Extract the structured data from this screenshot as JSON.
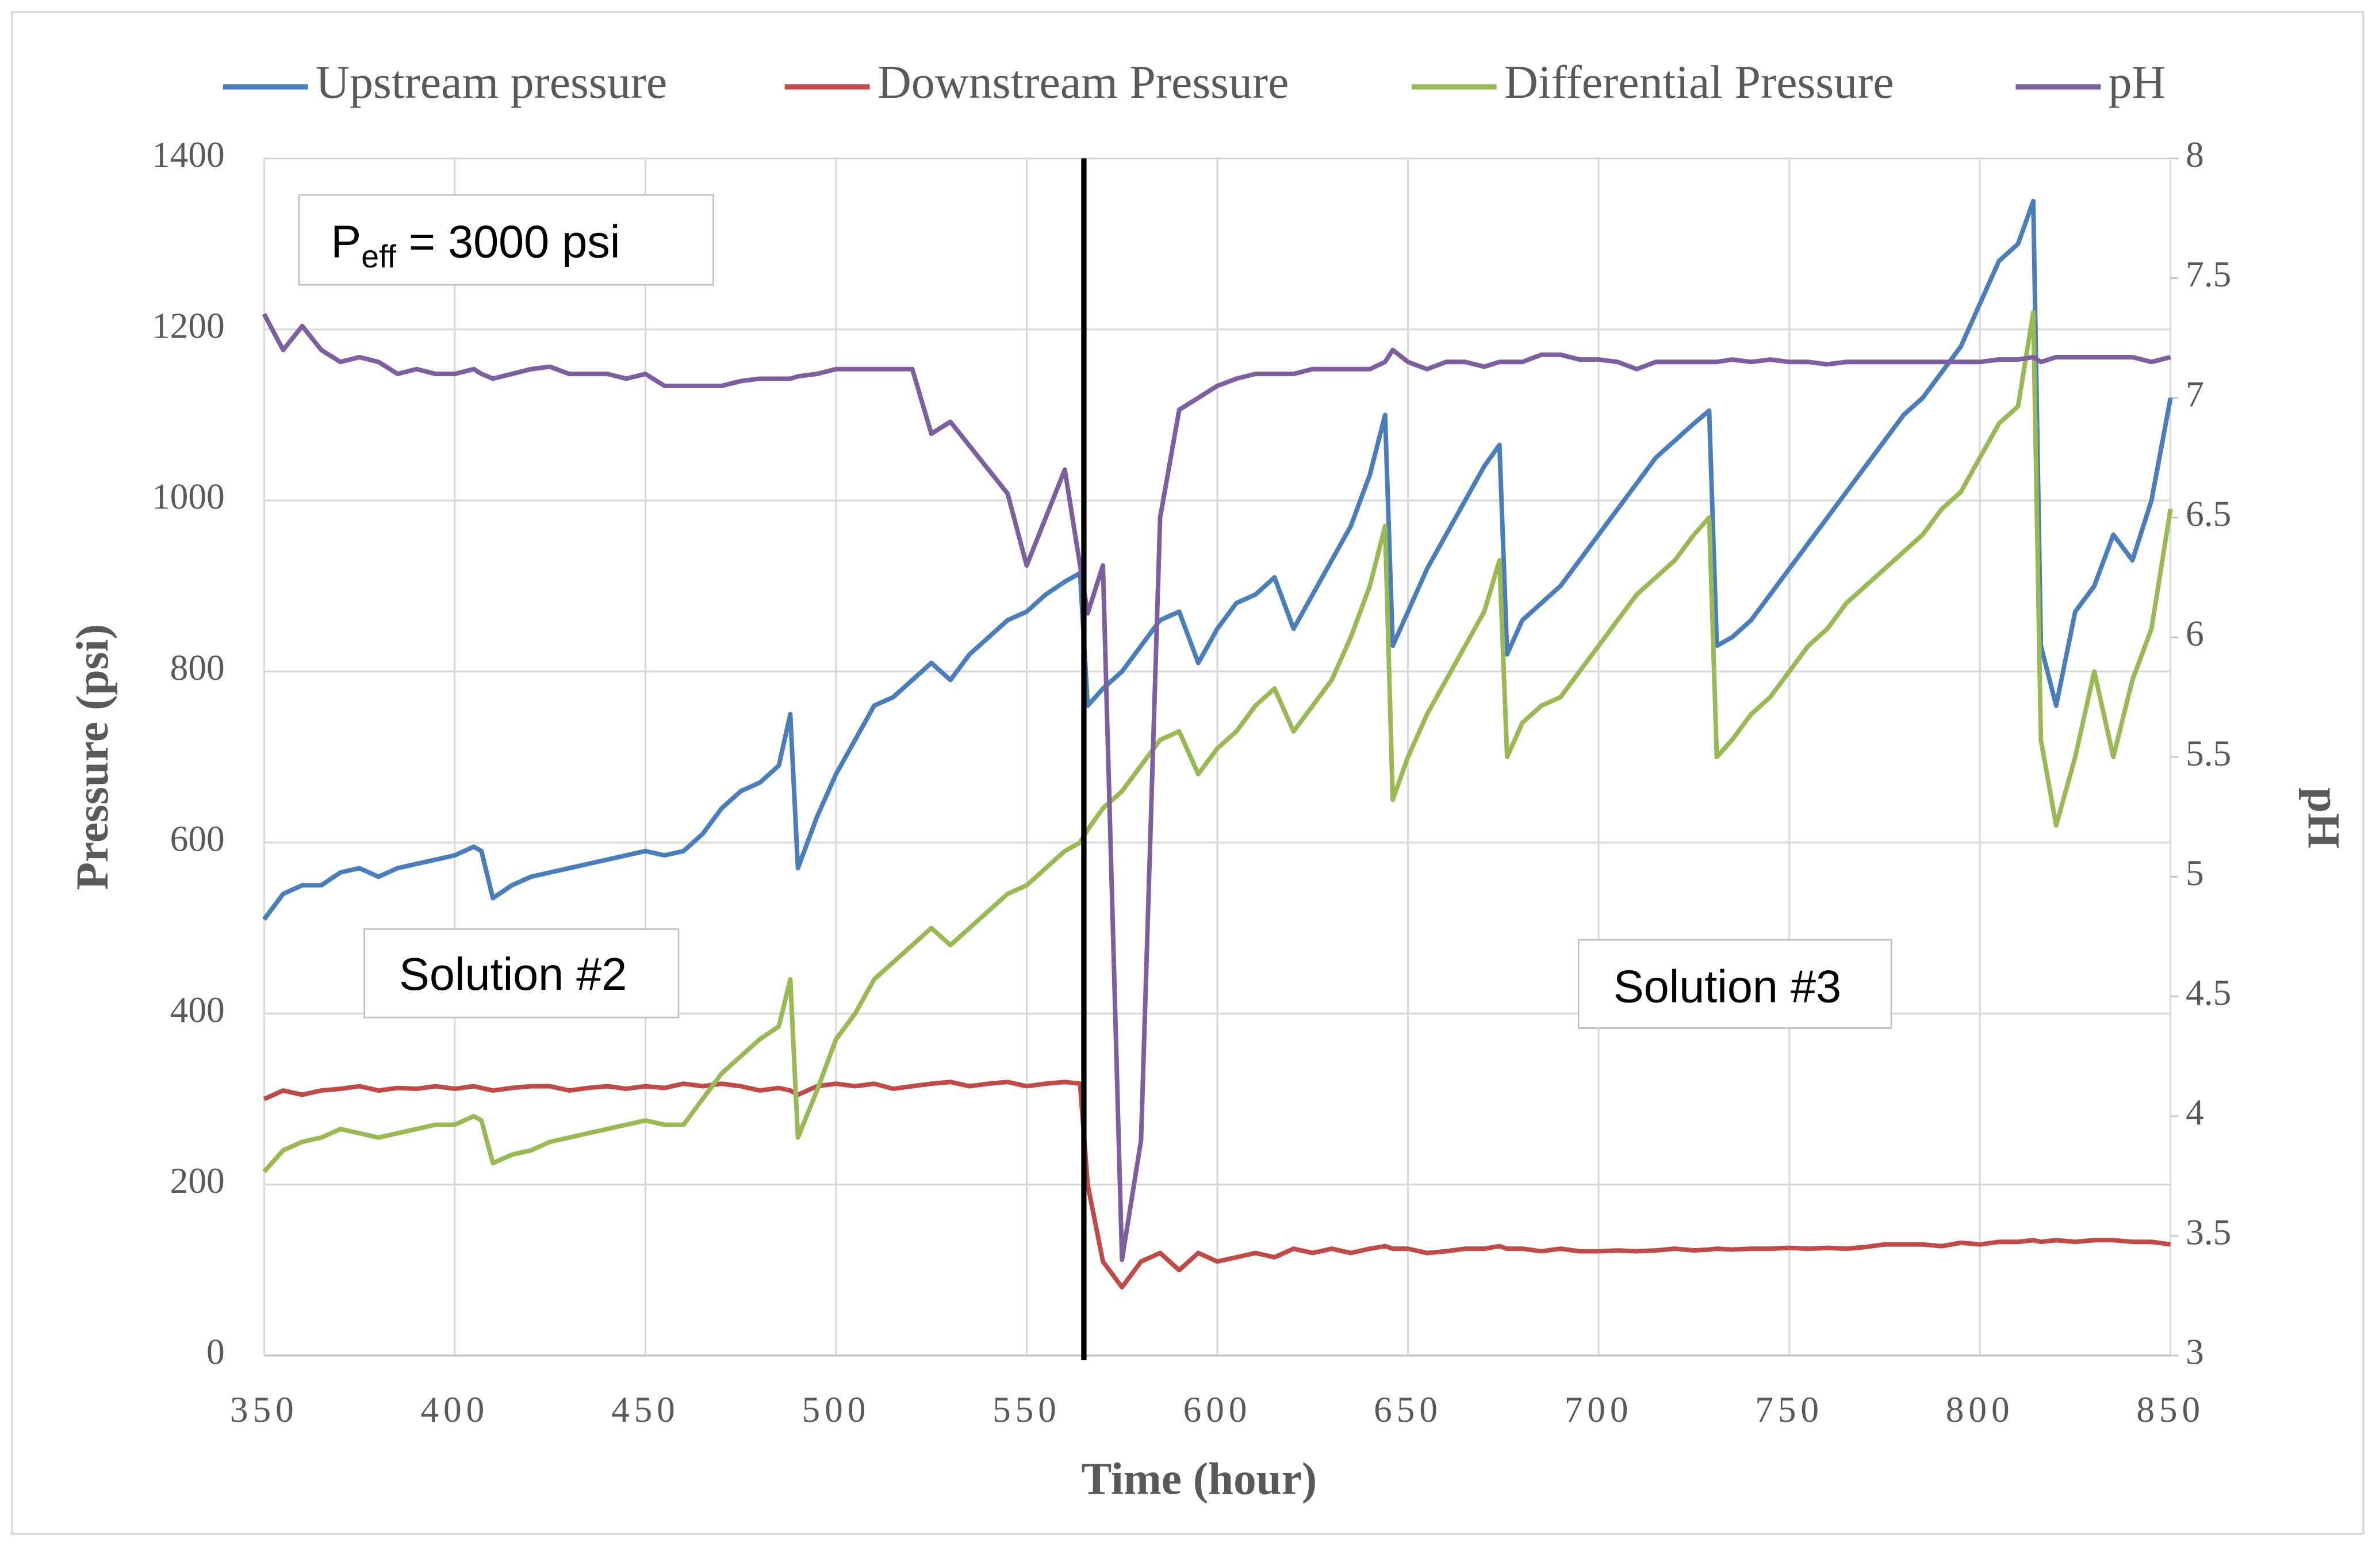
{
  "chart_data": {
    "type": "line",
    "xlabel": "Time (hour)",
    "ylabel": "Pressure (psi)",
    "y2label": "pH",
    "xlim": [
      350,
      850
    ],
    "xticks": [
      350,
      400,
      450,
      500,
      550,
      600,
      650,
      700,
      750,
      800,
      850
    ],
    "ylim": [
      0,
      1400
    ],
    "yticks": [
      0,
      200,
      400,
      600,
      800,
      1000,
      1200,
      1400
    ],
    "y2lim": [
      3,
      8
    ],
    "y2ticks": [
      3,
      3.5,
      4,
      4.5,
      5,
      5.5,
      6,
      6.5,
      7,
      7.5,
      8
    ],
    "grid": true,
    "legend": "top",
    "annotations": {
      "peff": {
        "base": "P",
        "sub": "eff",
        "text": " = 3000 psi"
      },
      "solution2": "Solution #2",
      "solution3": "Solution #3"
    },
    "marker_x": 565,
    "x": [
      350,
      355,
      360,
      365,
      370,
      375,
      380,
      385,
      390,
      395,
      400,
      405,
      407,
      410,
      415,
      420,
      425,
      430,
      435,
      440,
      445,
      450,
      455,
      460,
      465,
      470,
      475,
      480,
      485,
      488,
      490,
      495,
      500,
      505,
      510,
      515,
      520,
      525,
      530,
      535,
      540,
      545,
      550,
      555,
      560,
      564,
      566,
      570,
      575,
      580,
      585,
      590,
      595,
      600,
      605,
      610,
      615,
      620,
      625,
      630,
      635,
      640,
      644,
      646,
      650,
      655,
      660,
      665,
      670,
      674,
      676,
      680,
      685,
      690,
      695,
      700,
      705,
      710,
      715,
      720,
      725,
      729,
      731,
      735,
      740,
      745,
      750,
      755,
      760,
      765,
      770,
      775,
      780,
      785,
      790,
      795,
      800,
      805,
      810,
      814,
      816,
      820,
      825,
      830,
      835,
      840,
      845,
      850
    ],
    "series": [
      {
        "name": "Upstream pressure",
        "color": "#4a7ebb",
        "values": [
          510,
          540,
          550,
          550,
          565,
          570,
          560,
          570,
          575,
          580,
          585,
          595,
          590,
          535,
          550,
          560,
          565,
          570,
          575,
          580,
          585,
          590,
          585,
          590,
          610,
          640,
          660,
          670,
          690,
          750,
          570,
          630,
          680,
          720,
          760,
          770,
          790,
          810,
          790,
          820,
          840,
          860,
          870,
          890,
          905,
          915,
          760,
          780,
          800,
          830,
          860,
          870,
          810,
          850,
          880,
          890,
          910,
          850,
          890,
          930,
          970,
          1030,
          1100,
          830,
          870,
          920,
          960,
          1000,
          1040,
          1065,
          820,
          860,
          880,
          900,
          930,
          960,
          990,
          1020,
          1050,
          1070,
          1090,
          1105,
          830,
          840,
          860,
          890,
          920,
          950,
          980,
          1010,
          1040,
          1070,
          1100,
          1120,
          1150,
          1180,
          1230,
          1280,
          1300,
          1350,
          830,
          760,
          870,
          900,
          960,
          930,
          1000,
          1120
        ]
      },
      {
        "name": "Downstream Pressure",
        "color": "#be4b48",
        "values": [
          300,
          310,
          305,
          310,
          312,
          315,
          310,
          313,
          312,
          315,
          312,
          315,
          313,
          310,
          313,
          315,
          315,
          310,
          313,
          315,
          312,
          315,
          313,
          318,
          315,
          318,
          315,
          310,
          313,
          310,
          305,
          315,
          318,
          315,
          318,
          312,
          315,
          318,
          320,
          315,
          318,
          320,
          315,
          318,
          320,
          318,
          200,
          110,
          80,
          110,
          120,
          100,
          120,
          110,
          115,
          120,
          115,
          125,
          120,
          125,
          120,
          125,
          128,
          125,
          125,
          120,
          122,
          125,
          125,
          128,
          125,
          125,
          122,
          125,
          122,
          122,
          123,
          122,
          123,
          125,
          123,
          124,
          125,
          124,
          125,
          125,
          126,
          125,
          126,
          125,
          127,
          130,
          130,
          130,
          128,
          132,
          130,
          133,
          133,
          135,
          133,
          135,
          133,
          135,
          135,
          133,
          133,
          130
        ]
      },
      {
        "name": "Differential Pressure",
        "color": "#98b954",
        "values": [
          215,
          240,
          250,
          255,
          265,
          260,
          255,
          260,
          265,
          270,
          270,
          280,
          275,
          225,
          235,
          240,
          250,
          255,
          260,
          265,
          270,
          275,
          270,
          270,
          300,
          330,
          350,
          370,
          385,
          440,
          255,
          310,
          370,
          400,
          440,
          460,
          480,
          500,
          480,
          500,
          520,
          540,
          550,
          570,
          590,
          600,
          615,
          640,
          660,
          690,
          720,
          730,
          680,
          710,
          730,
          760,
          780,
          730,
          760,
          790,
          840,
          900,
          970,
          650,
          700,
          750,
          790,
          830,
          870,
          930,
          700,
          740,
          760,
          770,
          800,
          830,
          860,
          890,
          910,
          930,
          960,
          980,
          700,
          720,
          750,
          770,
          800,
          830,
          850,
          880,
          900,
          920,
          940,
          960,
          990,
          1010,
          1050,
          1090,
          1110,
          1220,
          720,
          620,
          700,
          800,
          700,
          790,
          850,
          990
        ]
      },
      {
        "name": "pH",
        "color": "#7d5fa0",
        "axis": "y2",
        "values": [
          7.35,
          7.2,
          7.3,
          7.2,
          7.15,
          7.17,
          7.15,
          7.1,
          7.12,
          7.1,
          7.1,
          7.12,
          7.1,
          7.08,
          7.1,
          7.12,
          7.13,
          7.1,
          7.1,
          7.1,
          7.08,
          7.1,
          7.05,
          7.05,
          7.05,
          7.05,
          7.07,
          7.08,
          7.08,
          7.08,
          7.09,
          7.1,
          7.12,
          7.12,
          7.12,
          7.12,
          7.12,
          6.85,
          6.9,
          6.8,
          6.7,
          6.6,
          6.3,
          6.5,
          6.7,
          6.3,
          6.1,
          6.3,
          3.4,
          3.9,
          6.5,
          6.95,
          7.0,
          7.05,
          7.08,
          7.1,
          7.1,
          7.1,
          7.12,
          7.12,
          7.12,
          7.12,
          7.15,
          7.2,
          7.15,
          7.12,
          7.15,
          7.15,
          7.13,
          7.15,
          7.15,
          7.15,
          7.18,
          7.18,
          7.16,
          7.16,
          7.15,
          7.12,
          7.15,
          7.15,
          7.15,
          7.15,
          7.15,
          7.16,
          7.15,
          7.16,
          7.15,
          7.15,
          7.14,
          7.15,
          7.15,
          7.15,
          7.15,
          7.15,
          7.15,
          7.15,
          7.15,
          7.16,
          7.16,
          7.17,
          7.15,
          7.17,
          7.17,
          7.17,
          7.17,
          7.17,
          7.15,
          7.17
        ]
      }
    ]
  }
}
